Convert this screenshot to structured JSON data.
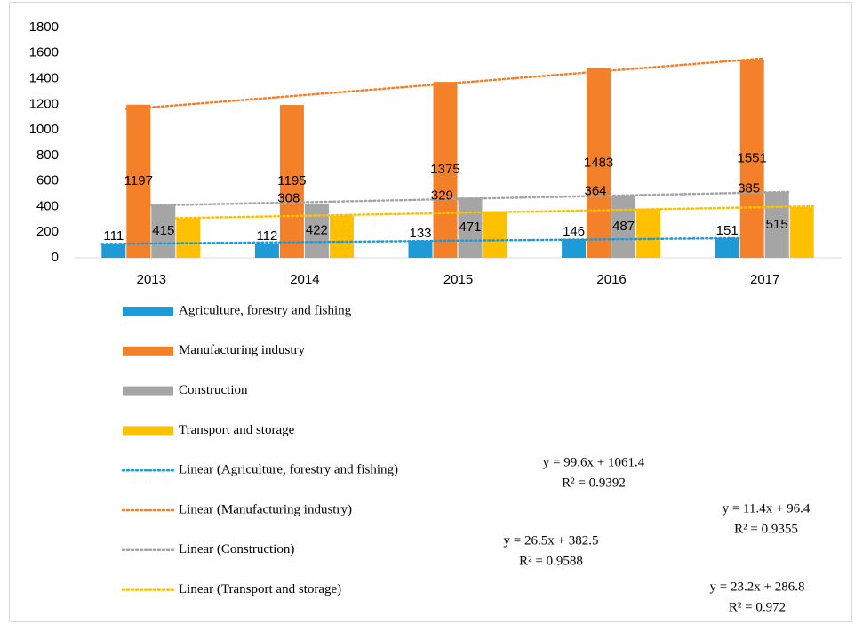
{
  "chart_data": {
    "type": "bar",
    "categories": [
      "2013",
      "2014",
      "2015",
      "2016",
      "2017"
    ],
    "ylim": [
      0,
      1800
    ],
    "yticks": [
      0,
      200,
      400,
      600,
      800,
      1000,
      1200,
      1400,
      1600,
      1800
    ],
    "grid": false,
    "legend": "bottom",
    "series": [
      {
        "name": "Agriculture, forestry and fishing",
        "color": "#1e9bd7",
        "values": [
          111,
          112,
          133,
          146,
          151
        ],
        "trendline": {
          "name": "Linear (Agriculture, forestry and fishing)",
          "equation": "y = 11.4x + 96.4",
          "r2": "R² = 0.9355"
        }
      },
      {
        "name": "Manufacturing industry",
        "color": "#f5802a",
        "values": [
          1197,
          1195,
          1375,
          1483,
          1551
        ],
        "trendline": {
          "name": "Linear (Manufacturing industry)",
          "equation": "y = 99.6x + 1061.4",
          "r2": "R² = 0.9392"
        }
      },
      {
        "name": "Construction",
        "color": "#a5a5a5",
        "values": [
          415,
          422,
          471,
          487,
          515
        ],
        "trendline": {
          "name": "Linear (Construction)",
          "equation": "y = 26.5x + 382.5",
          "r2": "R² = 0.9588"
        }
      },
      {
        "name": "Transport and storage",
        "color": "#ffc000",
        "values": [
          308,
          329,
          364,
          385,
          396
        ],
        "trendline": {
          "name": "Linear (Transport and storage)",
          "equation": "y = 23.2x + 286.8",
          "r2": "R² = 0.972"
        }
      }
    ]
  }
}
